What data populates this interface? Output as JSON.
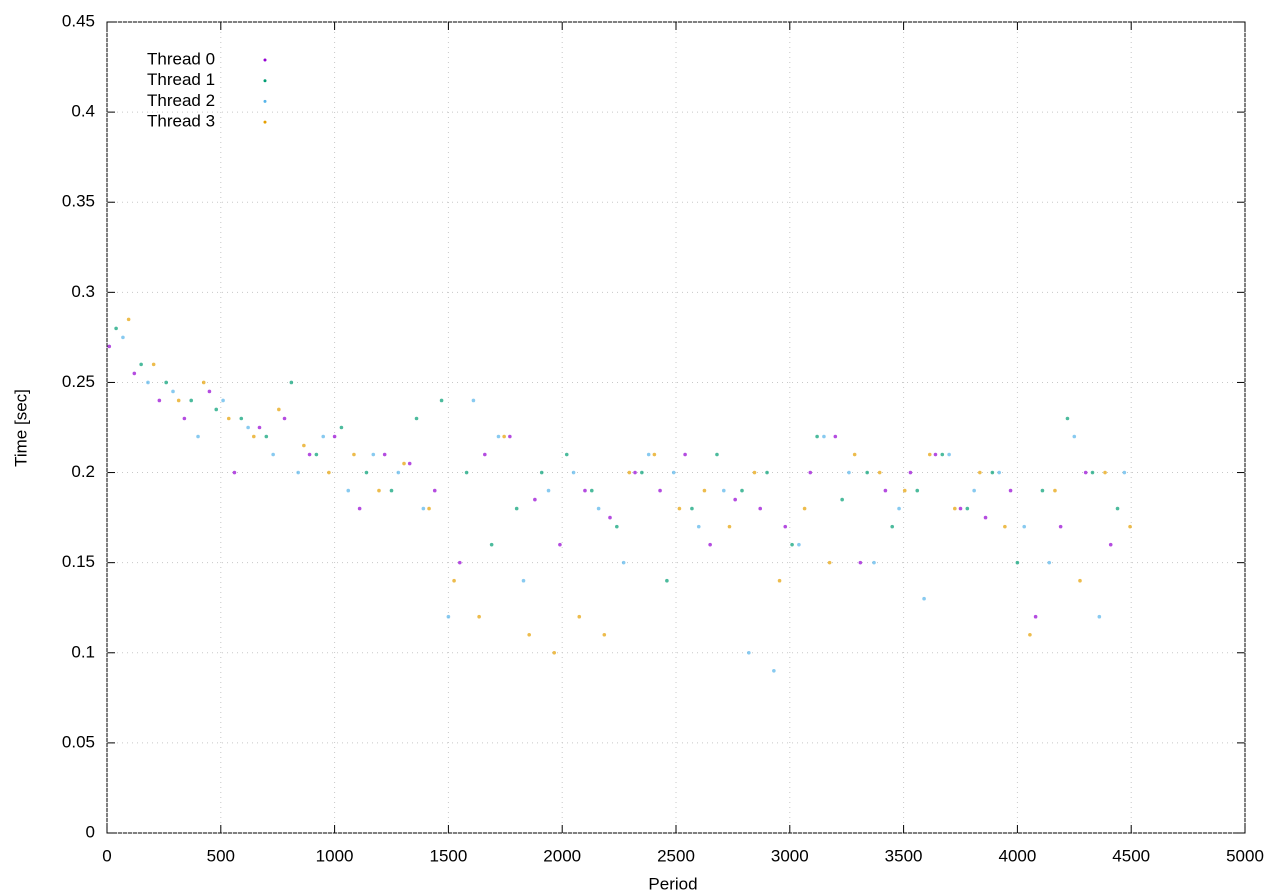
{
  "chart_data": {
    "type": "scatter",
    "xlabel": "Period",
    "ylabel": "Time [sec]",
    "xlim": [
      0,
      5000
    ],
    "ylim": [
      0,
      0.45
    ],
    "xticks": [
      0,
      500,
      1000,
      1500,
      2000,
      2500,
      3000,
      3500,
      4000,
      4500,
      5000
    ],
    "yticks": [
      0,
      0.05,
      0.1,
      0.15,
      0.2,
      0.25,
      0.3,
      0.35,
      0.4,
      0.45
    ],
    "grid": true,
    "legend": "top-left",
    "series": [
      {
        "name": "Thread 0",
        "color": "#9400d3",
        "x": [
          10,
          120,
          230,
          340,
          450,
          560,
          670,
          780,
          890,
          1000,
          1110,
          1220,
          1330,
          1440,
          1550,
          1660,
          1770,
          1880,
          1990,
          2100,
          2210,
          2320,
          2430,
          2540,
          2650,
          2760,
          2870,
          2980,
          3090,
          3200,
          3310,
          3420,
          3530,
          3640,
          3750,
          3860,
          3970,
          4080,
          4190,
          4300,
          4410
        ],
        "values": [
          0.27,
          0.255,
          0.24,
          0.23,
          0.245,
          0.2,
          0.225,
          0.23,
          0.21,
          0.22,
          0.18,
          0.21,
          0.205,
          0.19,
          0.15,
          0.21,
          0.22,
          0.185,
          0.16,
          0.19,
          0.175,
          0.2,
          0.19,
          0.21,
          0.16,
          0.185,
          0.18,
          0.17,
          0.2,
          0.22,
          0.15,
          0.19,
          0.2,
          0.21,
          0.18,
          0.175,
          0.19,
          0.12,
          0.17,
          0.2,
          0.16
        ]
      },
      {
        "name": "Thread 1",
        "color": "#009e73",
        "x": [
          40,
          150,
          260,
          370,
          480,
          590,
          700,
          810,
          920,
          1030,
          1140,
          1250,
          1360,
          1470,
          1580,
          1690,
          1800,
          1910,
          2020,
          2130,
          2240,
          2350,
          2460,
          2570,
          2680,
          2790,
          2900,
          3010,
          3120,
          3230,
          3340,
          3450,
          3560,
          3670,
          3780,
          3890,
          4000,
          4110,
          4220,
          4330,
          4440
        ],
        "values": [
          0.28,
          0.26,
          0.25,
          0.24,
          0.235,
          0.23,
          0.22,
          0.25,
          0.21,
          0.225,
          0.2,
          0.19,
          0.23,
          0.24,
          0.2,
          0.16,
          0.18,
          0.2,
          0.21,
          0.19,
          0.17,
          0.2,
          0.14,
          0.18,
          0.21,
          0.19,
          0.2,
          0.16,
          0.22,
          0.185,
          0.2,
          0.17,
          0.19,
          0.21,
          0.18,
          0.2,
          0.15,
          0.19,
          0.23,
          0.2,
          0.18
        ]
      },
      {
        "name": "Thread 2",
        "color": "#56b4e9",
        "x": [
          70,
          180,
          290,
          400,
          510,
          620,
          730,
          840,
          950,
          1060,
          1170,
          1280,
          1390,
          1500,
          1610,
          1720,
          1830,
          1940,
          2050,
          2160,
          2270,
          2380,
          2490,
          2600,
          2710,
          2820,
          2930,
          3040,
          3150,
          3260,
          3370,
          3480,
          3590,
          3700,
          3810,
          3920,
          4030,
          4140,
          4250,
          4360,
          4470
        ],
        "values": [
          0.275,
          0.25,
          0.245,
          0.22,
          0.24,
          0.225,
          0.21,
          0.2,
          0.22,
          0.19,
          0.21,
          0.2,
          0.18,
          0.12,
          0.24,
          0.22,
          0.14,
          0.19,
          0.2,
          0.18,
          0.15,
          0.21,
          0.2,
          0.17,
          0.19,
          0.1,
          0.09,
          0.16,
          0.22,
          0.2,
          0.15,
          0.18,
          0.13,
          0.21,
          0.19,
          0.2,
          0.17,
          0.15,
          0.22,
          0.12,
          0.2
        ]
      },
      {
        "name": "Thread 3",
        "color": "#e69f00",
        "x": [
          95,
          205,
          315,
          425,
          535,
          645,
          755,
          865,
          975,
          1085,
          1195,
          1305,
          1415,
          1525,
          1635,
          1745,
          1855,
          1965,
          2075,
          2185,
          2295,
          2405,
          2515,
          2625,
          2735,
          2845,
          2955,
          3065,
          3175,
          3285,
          3395,
          3505,
          3615,
          3725,
          3835,
          3945,
          4055,
          4165,
          4275,
          4385,
          4495
        ],
        "values": [
          0.285,
          0.26,
          0.24,
          0.25,
          0.23,
          0.22,
          0.235,
          0.215,
          0.2,
          0.21,
          0.19,
          0.205,
          0.18,
          0.14,
          0.12,
          0.22,
          0.11,
          0.1,
          0.12,
          0.11,
          0.2,
          0.21,
          0.18,
          0.19,
          0.17,
          0.2,
          0.14,
          0.18,
          0.15,
          0.21,
          0.2,
          0.19,
          0.21,
          0.18,
          0.2,
          0.17,
          0.11,
          0.19,
          0.14,
          0.2,
          0.17
        ]
      }
    ]
  }
}
